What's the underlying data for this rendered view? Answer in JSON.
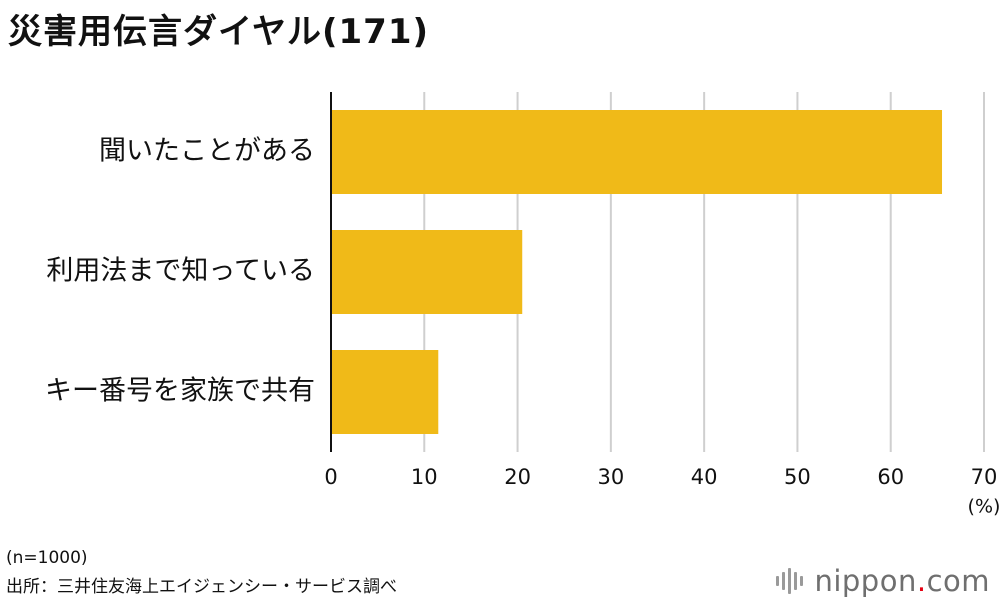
{
  "title": "災害用伝言ダイヤル(171)",
  "chart_data": {
    "type": "bar",
    "orientation": "horizontal",
    "categories": [
      "聞いたことがある",
      "利用法まで知っている",
      "キー番号を家族で共有"
    ],
    "values": [
      65.5,
      20.5,
      11.5
    ],
    "xlim": [
      0,
      70
    ],
    "ticks": [
      "0",
      "10",
      "20",
      "30",
      "40",
      "50",
      "60",
      "70"
    ],
    "unit_label": "(%)",
    "grid": true,
    "bar_color": "#F0BA18",
    "grid_color": "#cfcfcf"
  },
  "footnotes": {
    "n": "(n=1000)",
    "source": "出所：三井住友海上エイジェンシー・サービス調べ"
  },
  "logo": {
    "name": "nippon",
    "dot": ".",
    "suffix": "com",
    "accent_color": "#e60012"
  }
}
